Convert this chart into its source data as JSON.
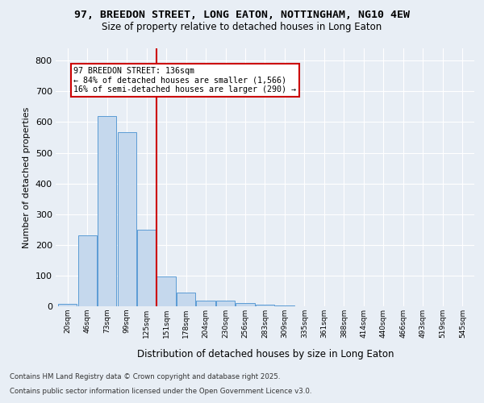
{
  "title_line1": "97, BREEDON STREET, LONG EATON, NOTTINGHAM, NG10 4EW",
  "title_line2": "Size of property relative to detached houses in Long Eaton",
  "xlabel": "Distribution of detached houses by size in Long Eaton",
  "ylabel": "Number of detached properties",
  "categories": [
    "20sqm",
    "46sqm",
    "73sqm",
    "99sqm",
    "125sqm",
    "151sqm",
    "178sqm",
    "204sqm",
    "230sqm",
    "256sqm",
    "283sqm",
    "309sqm",
    "335sqm",
    "361sqm",
    "388sqm",
    "414sqm",
    "440sqm",
    "466sqm",
    "493sqm",
    "519sqm",
    "545sqm"
  ],
  "values": [
    8,
    232,
    620,
    568,
    250,
    98,
    45,
    18,
    18,
    10,
    5,
    3,
    0,
    0,
    0,
    0,
    0,
    0,
    0,
    0,
    0
  ],
  "bar_color": "#c5d8ed",
  "bar_edge_color": "#5b9bd5",
  "annotation_text": "97 BREEDON STREET: 136sqm\n← 84% of detached houses are smaller (1,566)\n16% of semi-detached houses are larger (290) →",
  "annotation_box_color": "#ffffff",
  "annotation_box_edge": "#cc0000",
  "annotation_text_color": "#000000",
  "vline_color": "#cc0000",
  "vline_x_index": 4.5,
  "background_color": "#e8eef5",
  "plot_bg_color": "#e8eef5",
  "grid_color": "#ffffff",
  "footer_line1": "Contains HM Land Registry data © Crown copyright and database right 2025.",
  "footer_line2": "Contains public sector information licensed under the Open Government Licence v3.0.",
  "ylim": [
    0,
    840
  ],
  "yticks": [
    0,
    100,
    200,
    300,
    400,
    500,
    600,
    700,
    800
  ]
}
